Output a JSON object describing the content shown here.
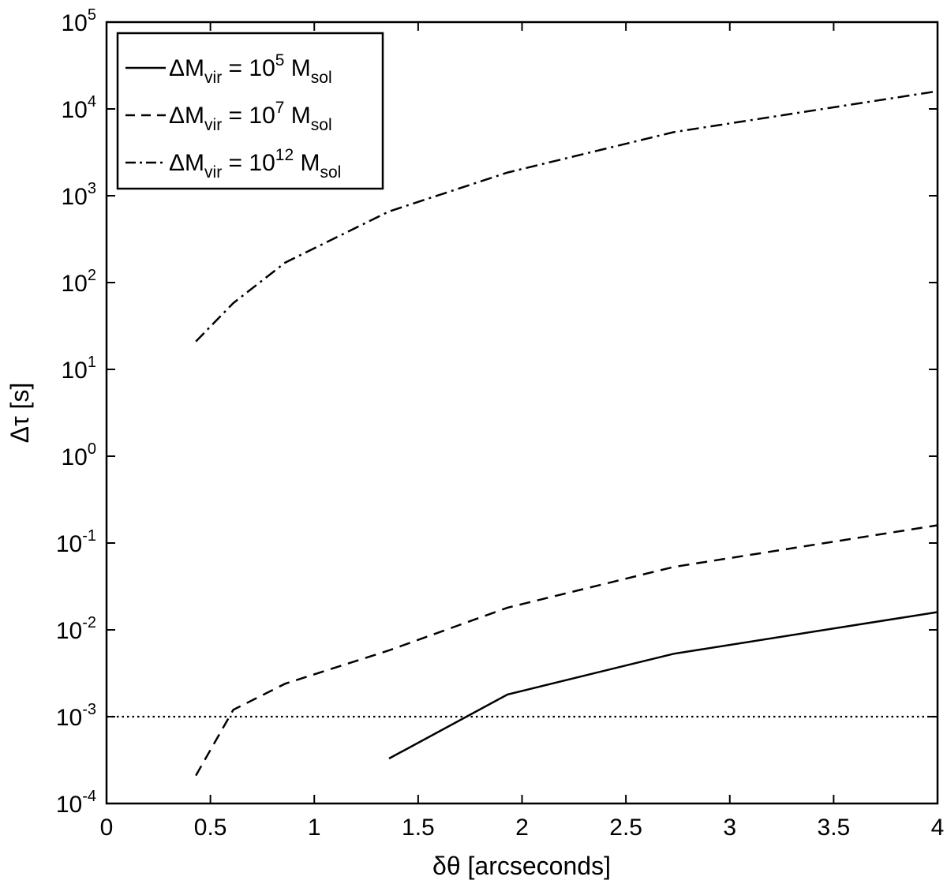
{
  "chart_data": {
    "type": "line",
    "xlabel": "δθ [arcseconds]",
    "ylabel": "Δτ [s]",
    "xlim": [
      0,
      4
    ],
    "ylim_log10": [
      -4,
      5
    ],
    "y_scale": "log",
    "x_ticks": [
      "0",
      "0.5",
      "1",
      "1.5",
      "2",
      "2.5",
      "3",
      "3.5",
      "4"
    ],
    "y_ticks": [
      {
        "base": "10",
        "exp": "-4"
      },
      {
        "base": "10",
        "exp": "-3"
      },
      {
        "base": "10",
        "exp": "-2"
      },
      {
        "base": "10",
        "exp": "-1"
      },
      {
        "base": "10",
        "exp": "0"
      },
      {
        "base": "10",
        "exp": "1"
      },
      {
        "base": "10",
        "exp": "2"
      },
      {
        "base": "10",
        "exp": "3"
      },
      {
        "base": "10",
        "exp": "4"
      },
      {
        "base": "10",
        "exp": "5"
      }
    ],
    "grid": false,
    "legend_position": "top-left",
    "series": [
      {
        "legend_prefix": "ΔM",
        "legend_sub": "vir",
        "legend_mid": " = 10",
        "legend_sup": "5",
        "legend_unit": " M",
        "legend_unit_sub": "sol",
        "style": "solid",
        "points": [
          [
            1.36,
            0.00033
          ],
          [
            1.93,
            0.0018
          ],
          [
            2.73,
            0.0053
          ],
          [
            4.0,
            0.016
          ]
        ]
      },
      {
        "legend_prefix": "ΔM",
        "legend_sub": "vir",
        "legend_mid": " = 10",
        "legend_sup": "7",
        "legend_unit": " M",
        "legend_unit_sub": "sol",
        "style": "dashed",
        "points": [
          [
            0.43,
            0.00021
          ],
          [
            0.61,
            0.0012
          ],
          [
            0.86,
            0.0024
          ],
          [
            1.36,
            0.0058
          ],
          [
            1.93,
            0.018
          ],
          [
            2.73,
            0.053
          ],
          [
            4.0,
            0.16
          ]
        ]
      },
      {
        "legend_prefix": "ΔM",
        "legend_sub": "vir",
        "legend_mid": " = 10",
        "legend_sup": "12",
        "legend_unit": " M",
        "legend_unit_sub": "sol",
        "style": "dashdot",
        "points": [
          [
            0.43,
            21
          ],
          [
            0.61,
            58
          ],
          [
            0.86,
            170
          ],
          [
            1.36,
            660
          ],
          [
            1.93,
            1850
          ],
          [
            2.73,
            5400
          ],
          [
            4.0,
            16000
          ]
        ]
      }
    ],
    "reference_line": {
      "y": 0.001,
      "style": "dotted"
    }
  }
}
